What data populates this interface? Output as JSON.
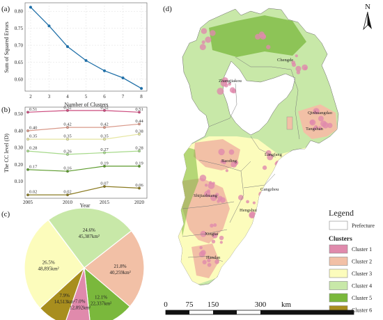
{
  "panels": {
    "a": "(a)",
    "b": "(b)",
    "c": "(c)",
    "d": "(d)"
  },
  "chart_data": [
    {
      "type": "line",
      "x": [
        2,
        3,
        4,
        5,
        6,
        7,
        8
      ],
      "values": [
        0.812,
        0.757,
        0.696,
        0.655,
        0.625,
        0.604,
        0.573
      ],
      "xlabel": "Number of Clusters",
      "ylabel": "Sum of Squared Errors",
      "xlim": [
        1.7,
        8.3
      ],
      "ylim": [
        0.565,
        0.825
      ],
      "yticks": [
        0.6,
        0.65,
        0.7,
        0.75,
        0.8
      ],
      "ytick_labels": [
        "0.60",
        "0.65",
        "0.70",
        "0.75",
        "0.80"
      ],
      "color": "#2070a8",
      "grid": true
    },
    {
      "type": "line",
      "x": [
        2005,
        2010,
        2015,
        2020
      ],
      "xlabel": "Year",
      "ylabel": "The CC level (D)",
      "ylim": [
        0,
        0.54
      ],
      "yticks": [
        0.1,
        0.2,
        0.3,
        0.4,
        0.5
      ],
      "ytick_labels": [
        "0.10",
        "0.20",
        "0.30",
        "0.40",
        "0.50"
      ],
      "series": [
        {
          "values": [
            0.51,
            0.52,
            0.52,
            0.51
          ],
          "labels": [
            "0.51",
            "0.52",
            "0.52",
            "0.51"
          ],
          "color": "#cc4b7e"
        },
        {
          "values": [
            0.4,
            0.42,
            0.42,
            0.44
          ],
          "labels": [
            "0.40",
            "0.42",
            "0.42",
            "0.44"
          ],
          "color": "#d9998a"
        },
        {
          "values": [
            0.35,
            0.35,
            0.35,
            0.38
          ],
          "labels": [
            "0.35",
            "0.35",
            "0.35",
            "0.38"
          ],
          "color": "#e6e6a0"
        },
        {
          "values": [
            0.28,
            0.26,
            0.27,
            0.28
          ],
          "labels": [
            "0.28",
            "0.26",
            "0.27",
            "0.28"
          ],
          "color": "#a6d98a"
        },
        {
          "values": [
            0.17,
            0.16,
            0.19,
            0.19
          ],
          "labels": [
            "0.17",
            "0.16",
            "0.19",
            "0.19"
          ],
          "color": "#5a9a2a"
        },
        {
          "values": [
            0.02,
            0.02,
            0.07,
            0.06
          ],
          "labels": [
            "0.02",
            "0.02",
            "0.07",
            "0.06"
          ],
          "color": "#8a7a20"
        }
      ]
    },
    {
      "type": "pie",
      "slices": [
        {
          "label": "Cluster 1",
          "percent": 7.0,
          "pct_text": "7.0%",
          "area_text": "12,892km²",
          "color": "#e08aac"
        },
        {
          "label": "Cluster 2",
          "percent": 21.8,
          "pct_text": "21.8%",
          "area_text": "40,259km²",
          "color": "#f2c0a6"
        },
        {
          "label": "Cluster 3",
          "percent": 26.5,
          "pct_text": "26.5%",
          "area_text": "48,895km²",
          "color": "#fcfcbc"
        },
        {
          "label": "Cluster 4",
          "percent": 24.6,
          "pct_text": "24.6%",
          "area_text": "45,387km²",
          "color": "#c8e8a8"
        },
        {
          "label": "Cluster 5",
          "percent": 12.1,
          "pct_text": "12.1%",
          "area_text": "22,337km²",
          "color": "#7ab83c"
        },
        {
          "label": "Cluster 6",
          "percent": 7.9,
          "pct_text": "7.9%",
          "area_text": "14,513km²",
          "color": "#a88e1e"
        }
      ]
    }
  ],
  "map": {
    "north": "N",
    "cities": [
      "Chengde",
      "Zhangjiakou",
      "Qinhuangdao",
      "Tangshan",
      "Langfang",
      "Baoding",
      "Cangzhou",
      "Shijiazhuang",
      "Hengshui",
      "Xingtai",
      "Handan"
    ],
    "legend": {
      "title": "Legend",
      "prefecture": "Prefecture",
      "clusters_title": "Clusters",
      "items": [
        "Cluster 1",
        "Cluster 2",
        "Cluster 3",
        "Cluster 4",
        "Cluster 5",
        "Cluster 6"
      ],
      "colors": [
        "#e08aac",
        "#f2c0a6",
        "#fcfcbc",
        "#c8e8a8",
        "#7ab83c",
        "#a88e1e"
      ]
    },
    "scale": {
      "ticks": [
        "0",
        "75",
        "150",
        "300"
      ],
      "unit": "km"
    }
  }
}
